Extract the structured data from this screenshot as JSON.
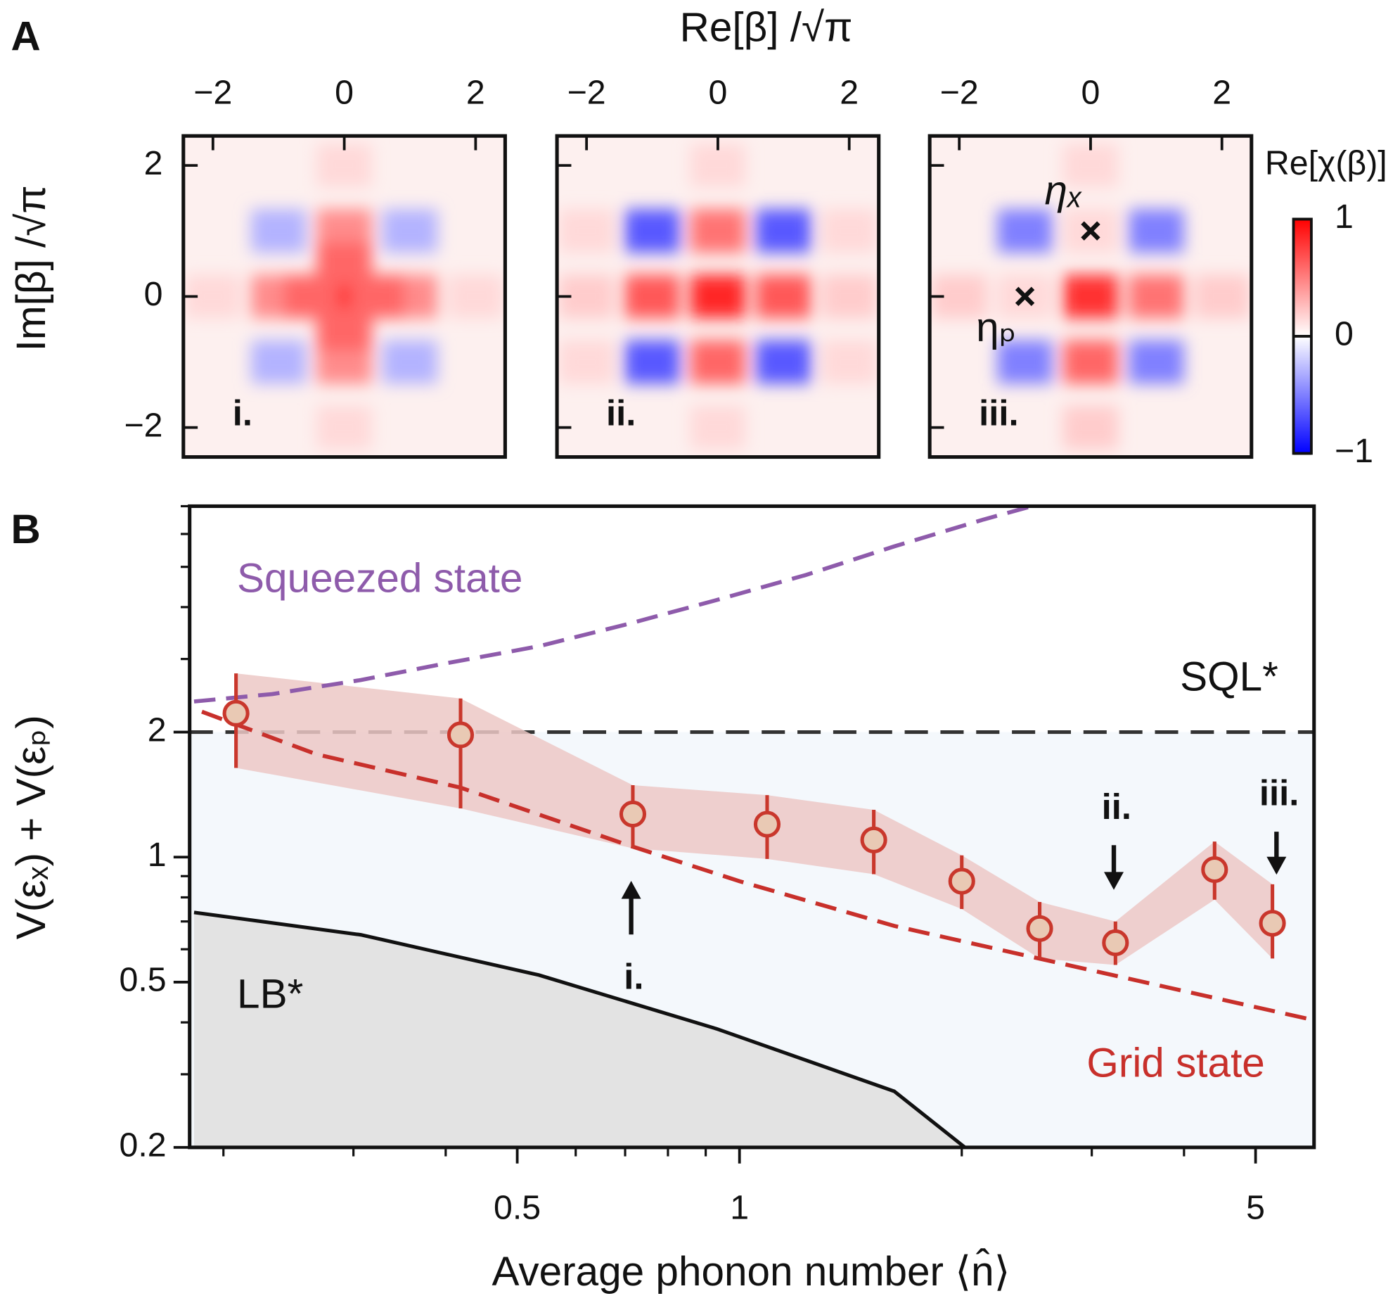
{
  "chart_data": [
    {
      "type": "heatmap",
      "panel_label": "A",
      "title": "Re[β] /√π",
      "ylabel": "Im[β] /√π",
      "xlim": [
        -2.45,
        2.45
      ],
      "ylim": [
        -2.45,
        2.45
      ],
      "xticks": [
        {
          "value": -2,
          "label": "−2"
        },
        0,
        2
      ],
      "yticks": [
        {
          "value": -2,
          "label": "−2"
        },
        0,
        2
      ],
      "panels": [
        {
          "label": "i.",
          "peaks": [
            [
              0,
              0,
              1
            ],
            [
              1,
              0,
              0.45
            ],
            [
              -1,
              0,
              0.45
            ],
            [
              0,
              1,
              0.45
            ],
            [
              0,
              -1,
              0.45
            ],
            [
              0.5,
              0,
              0.6
            ],
            [
              -0.5,
              0,
              0.6
            ],
            [
              0,
              0.5,
              0.6
            ],
            [
              0,
              -0.5,
              0.6
            ],
            [
              2,
              0,
              0.15
            ],
            [
              -2,
              0,
              0.15
            ],
            [
              0,
              2,
              0.15
            ],
            [
              0,
              -2,
              0.15
            ],
            [
              1,
              1,
              -0.3
            ],
            [
              -1,
              1,
              -0.3
            ],
            [
              1,
              -1,
              -0.3
            ],
            [
              -1,
              -1,
              -0.3
            ]
          ]
        },
        {
          "label": "ii.",
          "peaks": [
            [
              0,
              0,
              0.85
            ],
            [
              1,
              0,
              0.65
            ],
            [
              -1,
              0,
              0.65
            ],
            [
              0,
              1,
              0.55
            ],
            [
              0,
              -1,
              0.6
            ],
            [
              2,
              0,
              0.2
            ],
            [
              -2,
              0,
              0.2
            ],
            [
              0,
              2,
              0.15
            ],
            [
              0,
              -2,
              0.15
            ],
            [
              2,
              1,
              0.15
            ],
            [
              -2,
              1,
              0.15
            ],
            [
              2,
              -1,
              0.15
            ],
            [
              -2,
              -1,
              0.15
            ],
            [
              1,
              1,
              -0.65
            ],
            [
              -1,
              1,
              -0.65
            ],
            [
              1,
              -1,
              -0.65
            ],
            [
              -1,
              -1,
              -0.65
            ]
          ]
        },
        {
          "label": "iii.",
          "peaks": [
            [
              0,
              0,
              0.8
            ],
            [
              1,
              0,
              0.55
            ],
            [
              0,
              -1,
              0.6
            ],
            [
              0,
              1,
              0.15
            ],
            [
              -1,
              0,
              0.15
            ],
            [
              2,
              0,
              0.2
            ],
            [
              -2,
              0,
              0.2
            ],
            [
              0,
              2,
              0.15
            ],
            [
              0,
              -2,
              0.2
            ],
            [
              1,
              1,
              -0.5
            ],
            [
              -1,
              1,
              -0.5
            ],
            [
              1,
              -1,
              -0.5
            ],
            [
              -1,
              -1,
              -0.5
            ]
          ],
          "markers": [
            {
              "x": 0,
              "y": 1,
              "label": "ηₓ"
            },
            {
              "x": -1,
              "y": 0,
              "label": "ηₚ"
            }
          ]
        }
      ],
      "colorbar": {
        "label": "Re[χ(β)]",
        "lim": [
          -1,
          1
        ],
        "ticks": [
          {
            "value": -1,
            "label": "−1"
          },
          0,
          1
        ]
      }
    },
    {
      "type": "line",
      "panel_label": "B",
      "xlabel": "Average phonon number ⟨n̂⟩",
      "ylabel": "V(εₓ) + V(εₚ)",
      "log_x": true,
      "log_y": true,
      "xlim": [
        0.18,
        6
      ],
      "ylim": [
        0.2,
        7
      ],
      "xticks": [
        0.5,
        1,
        5
      ],
      "yticks": [
        0.2,
        0.5,
        1,
        2
      ],
      "xminorticks": [
        0.2,
        0.3,
        0.4,
        0.6,
        0.7,
        0.8,
        0.9,
        2,
        3,
        4
      ],
      "yminorticks": [
        0.3,
        0.4,
        0.6,
        0.7,
        0.8,
        0.9,
        3,
        4,
        5,
        6,
        7
      ],
      "reference_lines": [
        {
          "name": "SQL*",
          "value": 2,
          "color": "#333333",
          "region_color": "#f4f8fc"
        }
      ],
      "series": [
        {
          "name": "Squeezed state",
          "color": "#8e5bab",
          "dashed": true,
          "x": [
            0.1825,
            0.233,
            0.307,
            0.405,
            0.535,
            0.705,
            0.931,
            1.23,
            1.62,
            2.14,
            2.49
          ],
          "values": [
            2.37,
            2.47,
            2.67,
            2.94,
            3.22,
            3.64,
            4.16,
            4.78,
            5.6,
            6.5,
            7
          ]
        },
        {
          "name": "Grid state",
          "color": "#c8302b",
          "dashed": true,
          "x": [
            0.187,
            0.267,
            0.419,
            0.705,
            1.0,
            1.62,
            2.82,
            5.96
          ],
          "values": [
            2.24,
            1.77,
            1.47,
            1.07,
            0.875,
            0.683,
            0.547,
            0.406
          ]
        },
        {
          "name": "LB*",
          "color": "#111111",
          "dashed": false,
          "fill": "#e3e3e3",
          "x": [
            0.1825,
            0.307,
            0.535,
            0.931,
            1.62,
            2.02
          ],
          "values": [
            0.736,
            0.65,
            0.52,
            0.386,
            0.273,
            0.2
          ]
        }
      ],
      "data": {
        "color": "#c9372c",
        "marker_fill": "#e9c9b4",
        "band_color": "#ecc8c6",
        "x": [
          0.208,
          0.419,
          0.717,
          1.09,
          1.52,
          2.0,
          2.55,
          3.23,
          4.4,
          5.27
        ],
        "values": [
          2.22,
          1.97,
          1.27,
          1.2,
          1.1,
          0.875,
          0.673,
          0.622,
          0.933,
          0.693
        ],
        "lower": [
          1.64,
          1.31,
          1.05,
          0.99,
          0.91,
          0.75,
          0.57,
          0.55,
          0.79,
          0.57
        ],
        "upper": [
          2.77,
          2.41,
          1.49,
          1.41,
          1.3,
          1.01,
          0.78,
          0.7,
          1.09,
          0.86
        ]
      },
      "annotations": [
        "i.",
        "ii.",
        "iii."
      ]
    }
  ]
}
